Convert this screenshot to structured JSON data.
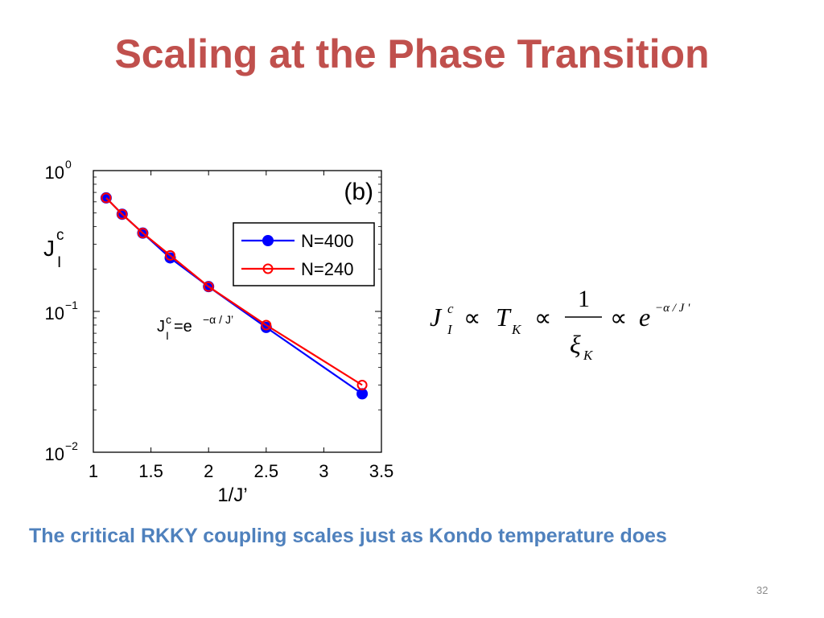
{
  "slide": {
    "title": "Scaling at the Phase Transition",
    "caption": "The critical RKKY coupling scales just as Kondo temperature does",
    "page_number": "32"
  },
  "colors": {
    "title": "#c0504d",
    "caption": "#4f81bd",
    "series_n400": "#0000ff",
    "series_n240": "#ff0000"
  },
  "chart_data": {
    "type": "line",
    "panel_label": "(b)",
    "xlabel": "1/J’",
    "ylabel": {
      "main": "J",
      "sup": "c",
      "sub": "I"
    },
    "xscale": "linear",
    "yscale": "log",
    "xlim": [
      1,
      3.5
    ],
    "ylim": [
      0.01,
      1
    ],
    "x_ticks": [
      {
        "value": 1,
        "label": "1"
      },
      {
        "value": 1.5,
        "label": "1.5"
      },
      {
        "value": 2,
        "label": "2"
      },
      {
        "value": 2.5,
        "label": "2.5"
      },
      {
        "value": 3,
        "label": "3"
      },
      {
        "value": 3.5,
        "label": "3.5"
      }
    ],
    "y_ticks": [
      {
        "value": 1,
        "base": "10",
        "exp": "0"
      },
      {
        "value": 0.1,
        "base": "10",
        "exp": "−1"
      },
      {
        "value": 0.01,
        "base": "10",
        "exp": "−2"
      }
    ],
    "annotation": {
      "lhs": "J",
      "sup": "c",
      "sub": "I",
      "eq": "=e",
      "exp": "−α / J’"
    },
    "legend_position": "upper-right",
    "series": [
      {
        "name": "N=400",
        "color": "#0000ff",
        "marker": "filled-circle",
        "x": [
          1.111,
          1.25,
          1.429,
          1.667,
          2.0,
          2.5,
          3.333
        ],
        "y": [
          0.64,
          0.49,
          0.36,
          0.24,
          0.15,
          0.077,
          0.026
        ]
      },
      {
        "name": "N=240",
        "color": "#ff0000",
        "marker": "open-circle",
        "x": [
          1.111,
          1.25,
          1.429,
          1.667,
          2.0,
          2.5,
          3.333
        ],
        "y": [
          0.64,
          0.49,
          0.36,
          0.25,
          0.15,
          0.08,
          0.03
        ]
      }
    ]
  },
  "formula": {
    "j": "J",
    "j_sup": "c",
    "j_sub": "I",
    "prop": "∝",
    "t": "T",
    "t_sub": "K",
    "numerator": "1",
    "xi": "ξ",
    "xi_sub": "K",
    "e": "e",
    "exp": "−α / J '"
  }
}
